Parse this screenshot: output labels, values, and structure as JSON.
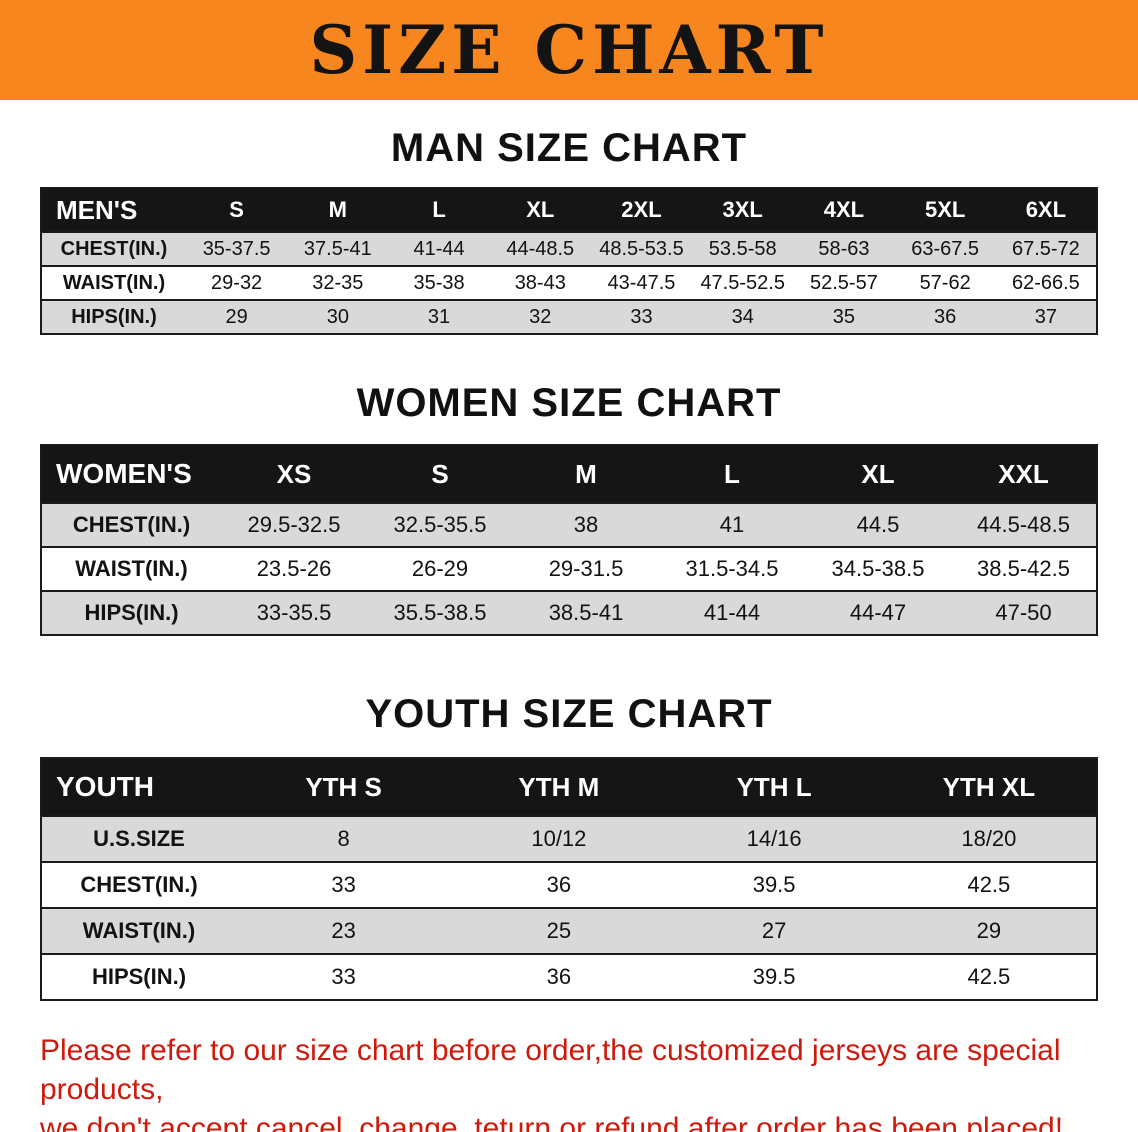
{
  "banner": {
    "title": "SIZE CHART"
  },
  "men": {
    "heading": "MAN SIZE CHART",
    "table": {
      "header": [
        "MEN'S",
        "S",
        "M",
        "L",
        "XL",
        "2XL",
        "3XL",
        "4XL",
        "5XL",
        "6XL"
      ],
      "rows": [
        [
          "CHEST(IN.)",
          "35-37.5",
          "37.5-41",
          "41-44",
          "44-48.5",
          "48.5-53.5",
          "53.5-58",
          "58-63",
          "63-67.5",
          "67.5-72"
        ],
        [
          "WAIST(IN.)",
          "29-32",
          "32-35",
          "35-38",
          "38-43",
          "43-47.5",
          "47.5-52.5",
          "52.5-57",
          "57-62",
          "62-66.5"
        ],
        [
          "HIPS(IN.)",
          "29",
          "30",
          "31",
          "32",
          "33",
          "34",
          "35",
          "36",
          "37"
        ]
      ]
    }
  },
  "women": {
    "heading": "WOMEN SIZE CHART",
    "table": {
      "header": [
        "WOMEN'S",
        "XS",
        "S",
        "M",
        "L",
        "XL",
        "XXL"
      ],
      "rows": [
        [
          "CHEST(IN.)",
          "29.5-32.5",
          "32.5-35.5",
          "38",
          "41",
          "44.5",
          "44.5-48.5"
        ],
        [
          "WAIST(IN.)",
          "23.5-26",
          "26-29",
          "29-31.5",
          "31.5-34.5",
          "34.5-38.5",
          "38.5-42.5"
        ],
        [
          "HIPS(IN.)",
          "33-35.5",
          "35.5-38.5",
          "38.5-41",
          "41-44",
          "44-47",
          "47-50"
        ]
      ]
    }
  },
  "youth": {
    "heading": "YOUTH SIZE CHART",
    "table": {
      "header": [
        "YOUTH",
        "YTH S",
        "YTH M",
        "YTH L",
        "YTH XL"
      ],
      "rows": [
        [
          "U.S.SIZE",
          "8",
          "10/12",
          "14/16",
          "18/20"
        ],
        [
          "CHEST(IN.)",
          "33",
          "36",
          "39.5",
          "42.5"
        ],
        [
          "WAIST(IN.)",
          "23",
          "25",
          "27",
          "29"
        ],
        [
          "HIPS(IN.)",
          "33",
          "36",
          "39.5",
          "42.5"
        ]
      ]
    }
  },
  "disclaimer": {
    "line1": "Please refer to our size chart before order,the customized jerseys are special products,",
    "line2": "we don't accept cancel, change, teturn or refund after order has been placed!"
  },
  "colors": {
    "banner_bg": "#f6861d",
    "table_header_bg": "#151515",
    "row_alt": "#d9d9d9",
    "disclaimer_text": "#cd1a0d"
  }
}
